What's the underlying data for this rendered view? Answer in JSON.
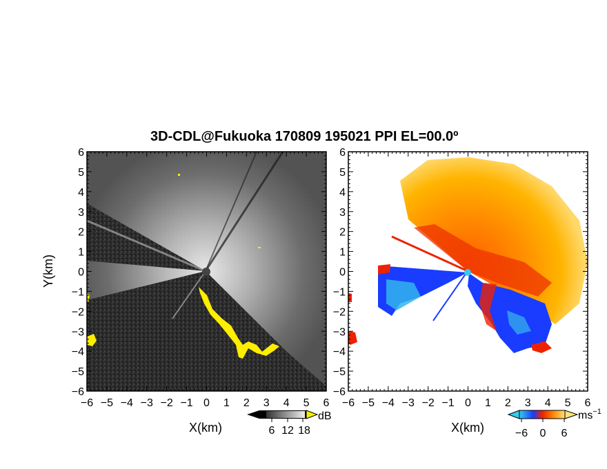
{
  "title": "3D-CDL@Fukuoka 170809 195021 PPI EL=00.0º",
  "left_panel": {
    "xlabel": "X(km)",
    "ylabel": "Y(km)",
    "x_ticks": [
      "−6",
      "−5",
      "−4",
      "−3",
      "−2",
      "−1",
      "0",
      "1",
      "2",
      "3",
      "4",
      "5",
      "6"
    ],
    "y_ticks": [
      "6",
      "5",
      "4",
      "3",
      "2",
      "1",
      "0",
      "−1",
      "−2",
      "−3",
      "−4",
      "−5",
      "−6"
    ],
    "colorbar": {
      "unit": "dB",
      "ticks": [
        "6",
        "12",
        "18"
      ]
    }
  },
  "right_panel": {
    "xlabel": "X(km)",
    "x_ticks": [
      "−6",
      "−5",
      "−4",
      "−3",
      "−2",
      "−1",
      "0",
      "1",
      "2",
      "3",
      "4",
      "5",
      "6"
    ],
    "y_ticks": [
      "6",
      "5",
      "4",
      "3",
      "2",
      "1",
      "0",
      "−1",
      "−2",
      "−3",
      "−4",
      "−5",
      "−6"
    ],
    "colorbar": {
      "unit": "ms",
      "unit_sup": "−1",
      "ticks": [
        "−6",
        "0",
        "6"
      ]
    }
  },
  "colors": {
    "highlight_yellow": "#ffee00",
    "velocity_blue": "#1a3cff",
    "velocity_cyan": "#33ccee",
    "velocity_red": "#ee2200",
    "velocity_orange": "#ff8800",
    "velocity_yellow": "#ffd24a"
  }
}
